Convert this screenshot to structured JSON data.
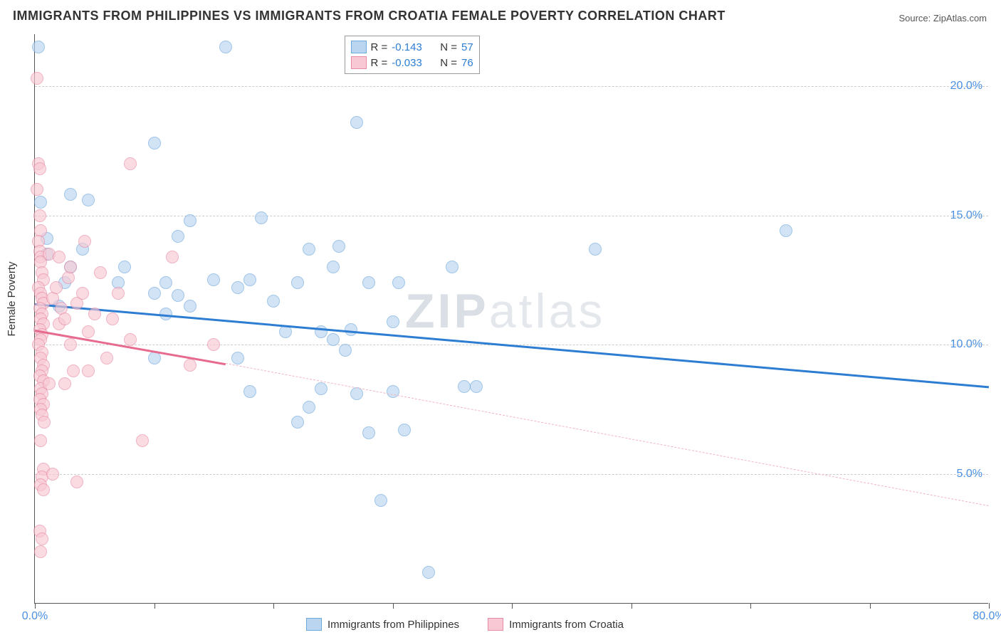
{
  "title": "IMMIGRANTS FROM PHILIPPINES VS IMMIGRANTS FROM CROATIA FEMALE POVERTY CORRELATION CHART",
  "source_label": "Source: ZipAtlas.com",
  "yaxis_title": "Female Poverty",
  "watermark": {
    "bold": "ZIP",
    "light": "atlas"
  },
  "chart": {
    "type": "scatter-correlation",
    "background_color": "#ffffff",
    "grid_color": "#cccccc",
    "axis_color": "#555555",
    "tick_label_color": "#4a90e2",
    "tick_fontsize": 16,
    "title_fontsize": 18,
    "xlim": [
      0,
      80
    ],
    "ylim": [
      0,
      22
    ],
    "xticks": [
      0,
      10,
      20,
      30,
      40,
      50,
      60,
      70,
      80
    ],
    "xtick_labels": {
      "0": "0.0%",
      "80": "80.0%"
    },
    "yticks": [
      5,
      10,
      15,
      20
    ],
    "ytick_labels": {
      "5": "5.0%",
      "10": "10.0%",
      "15": "15.0%",
      "20": "20.0%"
    },
    "marker_radius": 9,
    "marker_stroke_width": 1.5,
    "series": [
      {
        "name": "Immigrants from Philippines",
        "fill_color": "#b9d5f0",
        "stroke_color": "#6fa8dc",
        "fill_opacity": 0.65,
        "legend": {
          "R": "-0.143",
          "N": "57"
        },
        "trend": {
          "x1": 0,
          "y1": 11.6,
          "x2": 80,
          "y2": 8.4,
          "color": "#2d7dd2",
          "width": 2.5,
          "dash": "solid"
        },
        "points": [
          [
            0.3,
            21.5
          ],
          [
            0.5,
            15.5
          ],
          [
            16,
            21.5
          ],
          [
            10,
            17.8
          ],
          [
            3,
            15.8
          ],
          [
            13,
            14.8
          ],
          [
            19,
            14.9
          ],
          [
            1,
            14.1
          ],
          [
            4,
            13.7
          ],
          [
            12,
            14.2
          ],
          [
            3,
            13.0
          ],
          [
            11,
            12.4
          ],
          [
            2.5,
            12.4
          ],
          [
            7,
            12.4
          ],
          [
            7.5,
            13.0
          ],
          [
            10,
            12.0
          ],
          [
            12,
            11.9
          ],
          [
            11,
            11.2
          ],
          [
            13,
            11.5
          ],
          [
            15,
            12.5
          ],
          [
            17,
            12.2
          ],
          [
            18,
            12.5
          ],
          [
            20,
            11.7
          ],
          [
            22,
            12.4
          ],
          [
            23,
            13.7
          ],
          [
            24,
            10.5
          ],
          [
            25,
            13.0
          ],
          [
            25.5,
            13.8
          ],
          [
            27,
            21.6
          ],
          [
            27,
            18.6
          ],
          [
            28,
            12.4
          ],
          [
            30,
            10.9
          ],
          [
            30.5,
            12.4
          ],
          [
            17,
            9.5
          ],
          [
            18,
            8.2
          ],
          [
            21,
            10.5
          ],
          [
            22,
            7.0
          ],
          [
            23,
            7.6
          ],
          [
            24,
            8.3
          ],
          [
            25,
            10.2
          ],
          [
            26,
            9.8
          ],
          [
            26.5,
            10.6
          ],
          [
            27,
            8.1
          ],
          [
            28,
            6.6
          ],
          [
            29,
            4.0
          ],
          [
            30,
            8.2
          ],
          [
            31,
            6.7
          ],
          [
            10,
            9.5
          ],
          [
            35,
            13.0
          ],
          [
            36,
            8.4
          ],
          [
            37,
            8.4
          ],
          [
            47,
            13.7
          ],
          [
            63,
            14.4
          ],
          [
            33,
            1.2
          ],
          [
            4.5,
            15.6
          ],
          [
            2,
            11.5
          ],
          [
            1,
            13.5
          ]
        ]
      },
      {
        "name": "Immigrants from Croatia",
        "fill_color": "#f8c9d4",
        "stroke_color": "#e88ba5",
        "fill_opacity": 0.65,
        "legend": {
          "R": "-0.033",
          "N": "76"
        },
        "trend_solid": {
          "x1": 0,
          "y1": 10.6,
          "x2": 16,
          "y2": 9.3,
          "color": "#e76a8f",
          "width": 2.5,
          "dash": "solid"
        },
        "trend_dashed": {
          "x1": 16,
          "y1": 9.3,
          "x2": 80,
          "y2": 3.8,
          "color": "#f2b5c4",
          "width": 1.5,
          "dash": "dashed"
        },
        "points": [
          [
            0.2,
            20.3
          ],
          [
            0.3,
            17.0
          ],
          [
            0.4,
            16.8
          ],
          [
            0.2,
            16.0
          ],
          [
            0.4,
            15.0
          ],
          [
            0.5,
            14.4
          ],
          [
            0.3,
            14.0
          ],
          [
            0.4,
            13.6
          ],
          [
            0.5,
            13.4
          ],
          [
            0.5,
            13.2
          ],
          [
            0.6,
            12.8
          ],
          [
            0.7,
            12.5
          ],
          [
            0.3,
            12.2
          ],
          [
            0.5,
            12.0
          ],
          [
            0.6,
            11.8
          ],
          [
            0.7,
            11.6
          ],
          [
            0.4,
            11.4
          ],
          [
            0.6,
            11.2
          ],
          [
            0.5,
            11.0
          ],
          [
            0.7,
            10.8
          ],
          [
            0.4,
            10.6
          ],
          [
            0.6,
            10.4
          ],
          [
            0.5,
            10.2
          ],
          [
            0.3,
            10.0
          ],
          [
            0.6,
            9.7
          ],
          [
            0.5,
            9.5
          ],
          [
            0.7,
            9.2
          ],
          [
            0.6,
            9.0
          ],
          [
            0.4,
            8.8
          ],
          [
            0.7,
            8.6
          ],
          [
            0.5,
            8.3
          ],
          [
            0.6,
            8.1
          ],
          [
            0.4,
            7.9
          ],
          [
            0.7,
            7.7
          ],
          [
            0.5,
            7.5
          ],
          [
            0.6,
            7.3
          ],
          [
            0.8,
            7.0
          ],
          [
            0.5,
            6.3
          ],
          [
            0.7,
            5.2
          ],
          [
            0.6,
            4.9
          ],
          [
            0.5,
            4.6
          ],
          [
            0.7,
            4.4
          ],
          [
            0.4,
            2.8
          ],
          [
            0.6,
            2.5
          ],
          [
            0.5,
            2.0
          ],
          [
            1.2,
            13.5
          ],
          [
            1.2,
            8.5
          ],
          [
            1.5,
            11.8
          ],
          [
            1.5,
            5.0
          ],
          [
            1.8,
            12.2
          ],
          [
            2.0,
            13.4
          ],
          [
            2.0,
            10.8
          ],
          [
            2.2,
            11.4
          ],
          [
            2.5,
            11.0
          ],
          [
            2.5,
            8.5
          ],
          [
            2.8,
            12.6
          ],
          [
            3.0,
            10.0
          ],
          [
            3.0,
            13.0
          ],
          [
            3.2,
            9.0
          ],
          [
            3.5,
            11.6
          ],
          [
            4.0,
            12.0
          ],
          [
            4.2,
            14.0
          ],
          [
            4.5,
            10.5
          ],
          [
            5.0,
            11.2
          ],
          [
            5.5,
            12.8
          ],
          [
            6.0,
            9.5
          ],
          [
            6.5,
            11.0
          ],
          [
            7.0,
            12.0
          ],
          [
            8.0,
            10.2
          ],
          [
            9.0,
            6.3
          ],
          [
            11.5,
            13.4
          ],
          [
            13.0,
            9.2
          ],
          [
            15.0,
            10.0
          ],
          [
            8,
            17.0
          ],
          [
            3.5,
            4.7
          ],
          [
            4.5,
            9.0
          ]
        ]
      }
    ]
  },
  "legend_top_labels": {
    "R": "R =",
    "N": "N ="
  },
  "legend_bottom": [
    {
      "label": "Immigrants from Philippines",
      "fill": "#b9d5f0",
      "stroke": "#6fa8dc"
    },
    {
      "label": "Immigrants from Croatia",
      "fill": "#f8c9d4",
      "stroke": "#e88ba5"
    }
  ]
}
